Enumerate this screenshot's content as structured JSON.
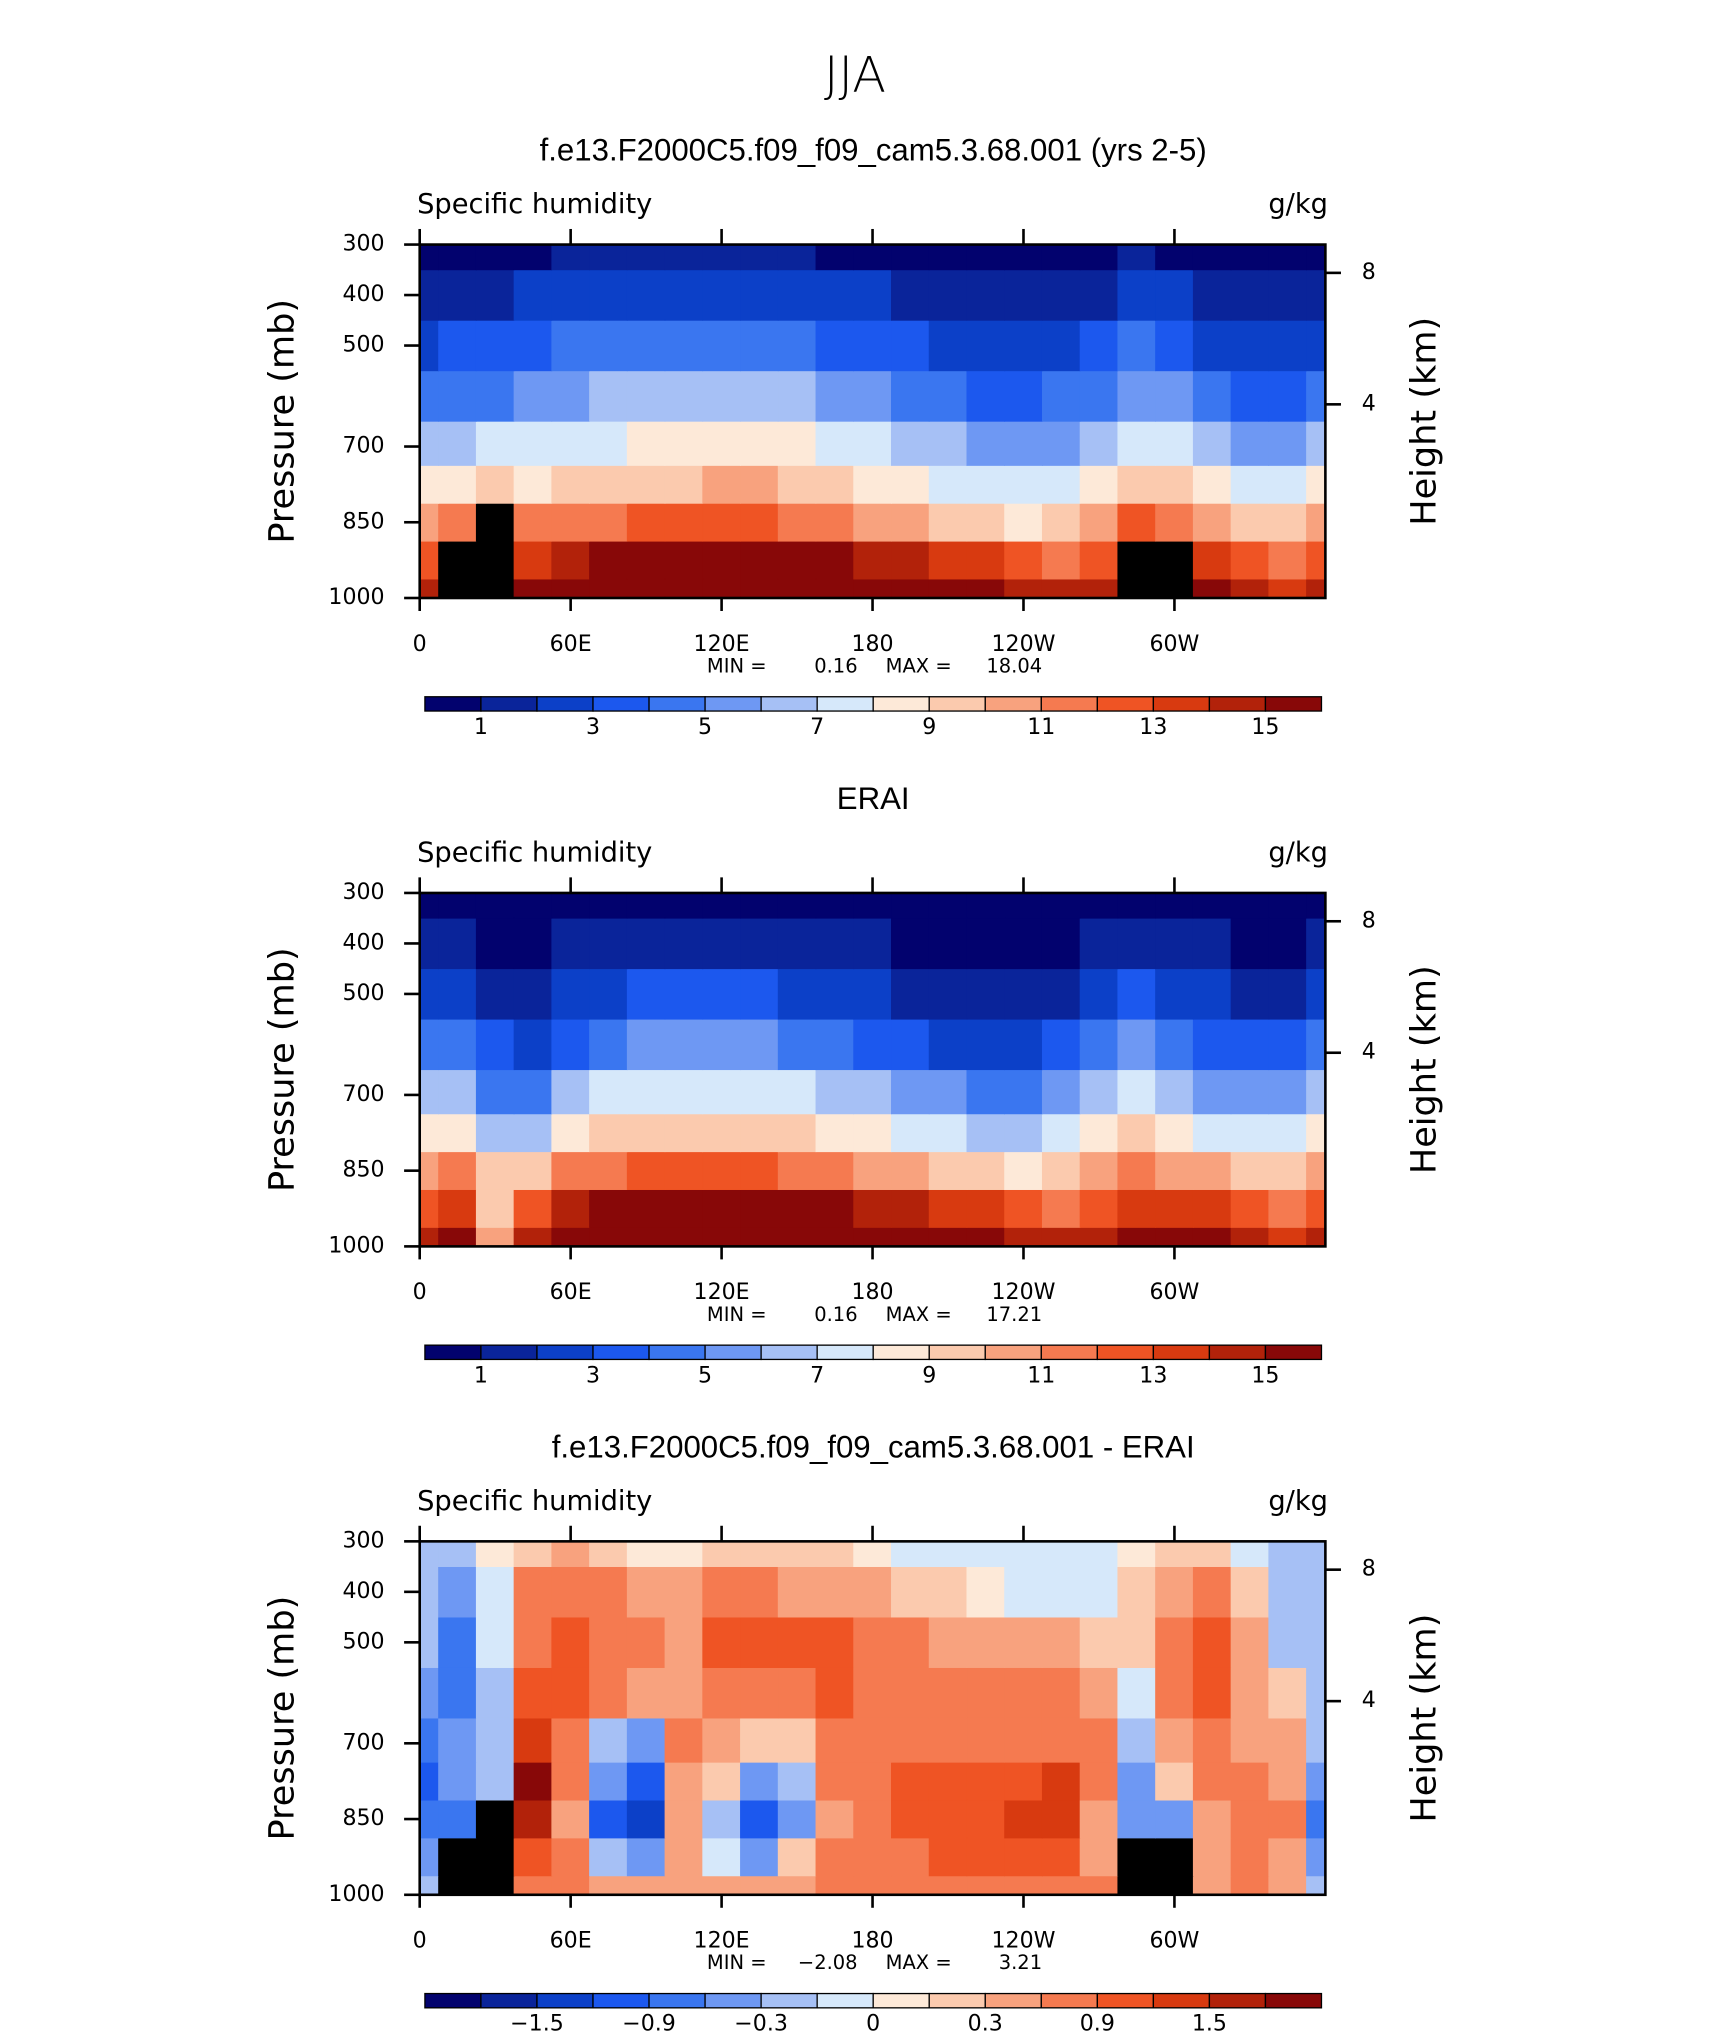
{
  "title": "JJA",
  "chart_data": [
    {
      "type": "contour",
      "title": "f.e13.F2000C5.f09_f09_cam5.3.68.001 (yrs 2-5)",
      "left_label": "Specific humidity",
      "units": "g/kg",
      "ylabel": "Pressure (mb)",
      "y2label": "Height (km)",
      "x": [
        0,
        15,
        30,
        45,
        60,
        75,
        90,
        105,
        120,
        135,
        150,
        165,
        180,
        195,
        210,
        225,
        240,
        255,
        270,
        285,
        300,
        315,
        330,
        345,
        360
      ],
      "y": [
        1000,
        925,
        850,
        775,
        700,
        600,
        500,
        400,
        300
      ],
      "values": [
        [
          14,
          null,
          null,
          15,
          16,
          16.5,
          17,
          17,
          17,
          17,
          17,
          17,
          16.5,
          16,
          15.5,
          15,
          14.5,
          14,
          14,
          null,
          null,
          15,
          14,
          13,
          14
        ],
        [
          12,
          null,
          null,
          13,
          14,
          15,
          15.5,
          15.5,
          15.5,
          15.5,
          15.5,
          15,
          14.5,
          14,
          13.5,
          13,
          12,
          11.5,
          12,
          null,
          null,
          13,
          12,
          11,
          12
        ],
        [
          10,
          11,
          null,
          11,
          11,
          11.5,
          12,
          12,
          12.5,
          12,
          11.5,
          11,
          10.5,
          10,
          9.5,
          9,
          8.5,
          9,
          10.5,
          12,
          11,
          10,
          9.5,
          9,
          10
        ],
        [
          8,
          8.5,
          9,
          8.5,
          9,
          9,
          9.5,
          9.5,
          10,
          10,
          9.5,
          9,
          8.5,
          8,
          7.5,
          7,
          7,
          7.5,
          8.5,
          9.5,
          9,
          8,
          7.5,
          7,
          8
        ],
        [
          6,
          6.5,
          7,
          7,
          7.5,
          7.5,
          8,
          8,
          8.5,
          8.5,
          8,
          7.5,
          7,
          6.5,
          6,
          5.5,
          5,
          5.5,
          6.5,
          7.5,
          7,
          6,
          5.5,
          5,
          6
        ],
        [
          4,
          4.5,
          4.5,
          5,
          5.5,
          6,
          6,
          6,
          6,
          6,
          6,
          5.5,
          5,
          4.5,
          4,
          3.5,
          3.5,
          4,
          4.5,
          5.5,
          5,
          4,
          3.5,
          3,
          4
        ],
        [
          2.5,
          3,
          3,
          3.5,
          4,
          4,
          4,
          4,
          4,
          4,
          4,
          3.5,
          3,
          3,
          2.5,
          2,
          2,
          2.5,
          3,
          4,
          3.5,
          2.5,
          2,
          2,
          2.5
        ],
        [
          1.2,
          1.5,
          1.5,
          2,
          2.5,
          2.5,
          2.5,
          2.5,
          2.5,
          2.5,
          2.5,
          2.2,
          2,
          1.8,
          1.5,
          1.2,
          1.2,
          1.5,
          1.8,
          2.5,
          2,
          1.5,
          1.2,
          1,
          1.2
        ],
        [
          0.5,
          0.6,
          0.6,
          0.8,
          1,
          1,
          1,
          1,
          1,
          1,
          1,
          0.9,
          0.8,
          0.7,
          0.6,
          0.5,
          0.5,
          0.6,
          0.7,
          1,
          0.8,
          0.6,
          0.5,
          0.4,
          0.5
        ]
      ],
      "xlim": [
        0,
        360
      ],
      "ylim": [
        1000,
        300
      ],
      "xticks": [
        0,
        {
          "value": 60,
          "label": "60E"
        },
        {
          "value": 120,
          "label": "120E"
        },
        180,
        {
          "value": 240,
          "label": "120W"
        },
        {
          "value": 300,
          "label": "60W"
        }
      ],
      "yticks": [
        300,
        400,
        500,
        700,
        850,
        1000
      ],
      "y2ticks": [
        4,
        8
      ],
      "contour_levels": [
        1,
        2,
        3,
        4,
        5,
        6,
        7,
        8,
        9,
        10,
        11,
        12,
        13,
        14,
        15
      ],
      "colorbar_labels": [
        1,
        3,
        5,
        7,
        9,
        11,
        13,
        15
      ],
      "colors": [
        "#02026e",
        "#0a249a",
        "#0c40c8",
        "#1c58ee",
        "#3a76f0",
        "#6e98f3",
        "#a6c0f5",
        "#d6e8fa",
        "#fde9d8",
        "#fbcaae",
        "#f8a27e",
        "#f57a50",
        "#ef5424",
        "#d83a10",
        "#b2220a",
        "#880808"
      ],
      "missing_color": "#000000",
      "min_label": "MIN =",
      "min": 0.16,
      "max_label": "MAX =",
      "max": 18.04
    },
    {
      "type": "contour",
      "title": "ERAI",
      "left_label": "Specific humidity",
      "units": "g/kg",
      "ylabel": "Pressure (mb)",
      "y2label": "Height (km)",
      "x": [
        0,
        15,
        30,
        45,
        60,
        75,
        90,
        105,
        120,
        135,
        150,
        165,
        180,
        195,
        210,
        225,
        240,
        255,
        270,
        285,
        300,
        315,
        330,
        345,
        360
      ],
      "y": [
        1000,
        925,
        850,
        775,
        700,
        600,
        500,
        400,
        300
      ],
      "values": [
        [
          14,
          15,
          10,
          14,
          16,
          16.5,
          17,
          17,
          17,
          17,
          17,
          17,
          16.5,
          16,
          15.5,
          15,
          14.5,
          14,
          14,
          15,
          15,
          15,
          14,
          13,
          14
        ],
        [
          12,
          13,
          9,
          12,
          14,
          15,
          15.5,
          15.5,
          15.5,
          15.5,
          15.5,
          15,
          14.5,
          14,
          13.5,
          13,
          12,
          11.5,
          12,
          13,
          13,
          13,
          12,
          11,
          12
        ],
        [
          10,
          11,
          9,
          9,
          11,
          11.5,
          12,
          12,
          12.5,
          12,
          11.5,
          11,
          10.5,
          10,
          9.5,
          9,
          8.5,
          9,
          10.5,
          11,
          10.5,
          10,
          9.5,
          9,
          10
        ],
        [
          8,
          8,
          6,
          6,
          8,
          9,
          9.5,
          9.5,
          9.5,
          9.5,
          9,
          8.5,
          8,
          7.5,
          7,
          6.5,
          6.5,
          7,
          8,
          9,
          8.5,
          7.5,
          7,
          7,
          8
        ],
        [
          6,
          6,
          4.5,
          4,
          6,
          7,
          7.5,
          7.5,
          7.5,
          7.5,
          7,
          6.5,
          6,
          5.5,
          5,
          4.5,
          4.5,
          5,
          6,
          7,
          6.5,
          5.5,
          5,
          5,
          6
        ],
        [
          4,
          4,
          3,
          2.5,
          3.5,
          4.5,
          5,
          5,
          5,
          5,
          4.5,
          4,
          3.5,
          3,
          2.5,
          2.5,
          2.5,
          3,
          4,
          5,
          4.5,
          3.5,
          3,
          3,
          4
        ],
        [
          2.5,
          2.5,
          1.8,
          1.5,
          2,
          2.5,
          3,
          3,
          3,
          3,
          2.8,
          2.5,
          2,
          1.8,
          1.5,
          1.2,
          1.2,
          1.5,
          2,
          3,
          2.5,
          2,
          1.8,
          1.8,
          2.5
        ],
        [
          1.2,
          1.2,
          0.9,
          0.8,
          1,
          1.3,
          1.6,
          1.6,
          1.6,
          1.5,
          1.4,
          1.2,
          1,
          0.9,
          0.8,
          0.7,
          0.7,
          0.8,
          1,
          1.5,
          1.2,
          1,
          0.9,
          0.9,
          1.2
        ],
        [
          0.5,
          0.5,
          0.4,
          0.4,
          0.5,
          0.6,
          0.7,
          0.7,
          0.7,
          0.6,
          0.6,
          0.5,
          0.5,
          0.4,
          0.4,
          0.4,
          0.4,
          0.4,
          0.5,
          0.6,
          0.5,
          0.5,
          0.4,
          0.4,
          0.5
        ]
      ],
      "xlim": [
        0,
        360
      ],
      "ylim": [
        1000,
        300
      ],
      "xticks": [
        0,
        {
          "value": 60,
          "label": "60E"
        },
        {
          "value": 120,
          "label": "120E"
        },
        180,
        {
          "value": 240,
          "label": "120W"
        },
        {
          "value": 300,
          "label": "60W"
        }
      ],
      "yticks": [
        300,
        400,
        500,
        700,
        850,
        1000
      ],
      "y2ticks": [
        4,
        8
      ],
      "contour_levels": [
        1,
        2,
        3,
        4,
        5,
        6,
        7,
        8,
        9,
        10,
        11,
        12,
        13,
        14,
        15
      ],
      "colorbar_labels": [
        1,
        3,
        5,
        7,
        9,
        11,
        13,
        15
      ],
      "colors": [
        "#02026e",
        "#0a249a",
        "#0c40c8",
        "#1c58ee",
        "#3a76f0",
        "#6e98f3",
        "#a6c0f5",
        "#d6e8fa",
        "#fde9d8",
        "#fbcaae",
        "#f8a27e",
        "#f57a50",
        "#ef5424",
        "#d83a10",
        "#b2220a",
        "#880808"
      ],
      "missing_color": "#000000",
      "min_label": "MIN =",
      "min": 0.16,
      "max_label": "MAX =",
      "max": 17.21
    },
    {
      "type": "contour",
      "title": "f.e13.F2000C5.f09_f09_cam5.3.68.001 - ERAI",
      "left_label": "Specific humidity",
      "units": "g/kg",
      "ylabel": "Pressure (mb)",
      "y2label": "Height (km)",
      "x": [
        0,
        15,
        30,
        45,
        60,
        75,
        90,
        105,
        120,
        135,
        150,
        165,
        180,
        195,
        210,
        225,
        240,
        255,
        270,
        285,
        300,
        315,
        330,
        345,
        360
      ],
      "y": [
        1000,
        925,
        850,
        775,
        700,
        600,
        500,
        400,
        300
      ],
      "values": [
        [
          -0.3,
          null,
          null,
          0.8,
          0.6,
          0.4,
          0.3,
          0.5,
          0.3,
          0.5,
          0.3,
          0.6,
          0.6,
          0.7,
          0.6,
          0.7,
          0.8,
          0.8,
          0.6,
          null,
          null,
          0.5,
          0.6,
          0.5,
          -0.3
        ],
        [
          -0.6,
          null,
          null,
          1.0,
          0.6,
          -0.2,
          -0.6,
          0.4,
          -0.1,
          -0.4,
          0.1,
          0.6,
          0.7,
          0.8,
          0.9,
          0.9,
          1.0,
          1.0,
          0.5,
          null,
          null,
          0.4,
          0.7,
          0.5,
          -0.6
        ],
        [
          -0.9,
          -0.9,
          null,
          1.5,
          0.3,
          -1.0,
          -1.4,
          0.3,
          -0.3,
          -1.0,
          -0.6,
          0.4,
          0.7,
          0.9,
          1.0,
          1.1,
          1.3,
          1.4,
          0.5,
          -0.4,
          -0.5,
          0.3,
          0.8,
          0.6,
          -0.9
        ],
        [
          -1.2,
          -0.6,
          -0.3,
          1.8,
          0.6,
          -0.6,
          -1.1,
          0.5,
          0.2,
          -0.6,
          -0.3,
          0.6,
          0.8,
          0.9,
          0.9,
          1.0,
          1.1,
          1.2,
          0.6,
          -0.6,
          0.2,
          0.6,
          0.6,
          0.4,
          -0.4
        ],
        [
          -0.9,
          -0.6,
          -0.3,
          1.3,
          0.7,
          -0.2,
          -0.5,
          0.6,
          0.5,
          0.1,
          0.2,
          0.7,
          0.8,
          0.8,
          0.7,
          0.7,
          0.7,
          0.8,
          0.7,
          -0.3,
          0.4,
          0.6,
          0.5,
          0.3,
          -0.3
        ],
        [
          -0.6,
          -0.8,
          -0.2,
          0.9,
          0.9,
          0.6,
          0.5,
          0.5,
          0.8,
          0.8,
          0.8,
          0.9,
          0.7,
          0.7,
          0.6,
          0.6,
          0.6,
          0.6,
          0.4,
          -0.1,
          0.6,
          0.9,
          0.5,
          0.2,
          -0.3
        ],
        [
          -0.3,
          -0.9,
          -0.1,
          0.8,
          1.0,
          0.8,
          0.6,
          0.5,
          1.0,
          1.0,
          0.9,
          1.0,
          0.6,
          0.6,
          0.5,
          0.4,
          0.4,
          0.4,
          0.2,
          0.1,
          0.6,
          0.9,
          0.4,
          -0.2,
          -0.3
        ],
        [
          -0.3,
          -0.5,
          -0.1,
          0.6,
          0.8,
          0.6,
          0.3,
          0.3,
          0.7,
          0.6,
          0.5,
          0.5,
          0.3,
          0.2,
          0.1,
          0.0,
          -0.1,
          -0.1,
          -0.1,
          0.1,
          0.5,
          0.6,
          0.2,
          -0.3,
          -0.3
        ],
        [
          -0.2,
          -0.2,
          0.05,
          0.2,
          0.3,
          0.2,
          0.05,
          0.05,
          0.2,
          0.2,
          0.2,
          0.1,
          0.05,
          -0.05,
          -0.05,
          -0.05,
          -0.05,
          -0.05,
          -0.05,
          0.05,
          0.1,
          0.1,
          -0.05,
          -0.2,
          -0.2
        ]
      ],
      "xlim": [
        0,
        360
      ],
      "ylim": [
        1000,
        300
      ],
      "xticks": [
        0,
        {
          "value": 60,
          "label": "60E"
        },
        {
          "value": 120,
          "label": "120E"
        },
        180,
        {
          "value": 240,
          "label": "120W"
        },
        {
          "value": 300,
          "label": "60W"
        }
      ],
      "yticks": [
        300,
        400,
        500,
        700,
        850,
        1000
      ],
      "y2ticks": [
        4,
        8
      ],
      "contour_levels": [
        -1.8,
        -1.5,
        -1.2,
        -0.9,
        -0.6,
        -0.3,
        -0.1,
        0,
        0.1,
        0.3,
        0.6,
        0.9,
        1.2,
        1.5,
        1.8
      ],
      "colorbar_labels": [
        {
          "value": -1.5,
          "label": "−1.5"
        },
        {
          "value": -0.9,
          "label": "−0.9"
        },
        {
          "value": -0.3,
          "label": "−0.3"
        },
        0,
        0.3,
        0.9,
        1.5
      ],
      "colors": [
        "#02026e",
        "#0a249a",
        "#0c40c8",
        "#1c58ee",
        "#3a76f0",
        "#6e98f3",
        "#a6c0f5",
        "#d6e8fa",
        "#fde9d8",
        "#fbcaae",
        "#f8a27e",
        "#f57a50",
        "#ef5424",
        "#d83a10",
        "#b2220a",
        "#880808"
      ],
      "missing_color": "#000000",
      "min_label": "MIN =",
      "min": {
        "value": -2.08,
        "label": "−2.08"
      },
      "max_label": "MAX =",
      "max": 3.21
    }
  ]
}
